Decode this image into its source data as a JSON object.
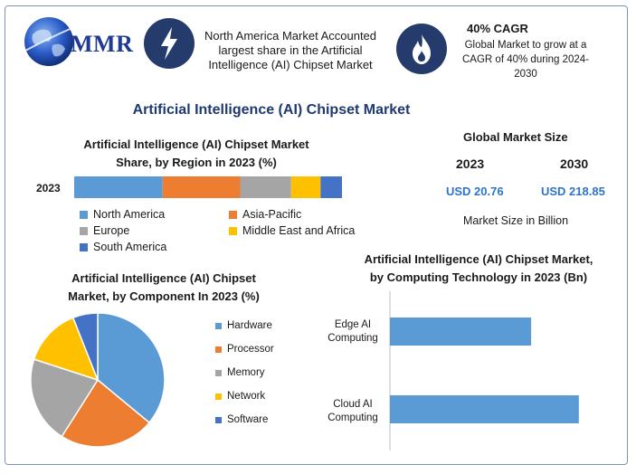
{
  "header": {
    "logo_text": "MMR",
    "highlight_1": {
      "icon": "lightning-bolt-icon",
      "text": "North America Market Accounted largest share in the Artificial Intelligence (AI) Chipset Market"
    },
    "highlight_2": {
      "icon": "flame-icon",
      "title": "40% CAGR",
      "text": "Global Market to grow at a CAGR of 40% during 2024-2030"
    }
  },
  "main_title": "Artificial Intelligence (AI) Chipset Market",
  "market_size": {
    "title": "Global Market Size",
    "year_1": "2023",
    "year_2": "2030",
    "value_1": "USD 20.76",
    "value_2": "USD 218.85",
    "note": "Market Size in Billion"
  },
  "colors": {
    "blue": "#5b9bd5",
    "orange": "#ed7d31",
    "gray": "#a5a5a5",
    "yellow": "#ffc000",
    "dark_blue": "#4472c4"
  },
  "chart_data": [
    {
      "type": "bar",
      "orientation": "horizontal-stacked",
      "title": "Artificial Intelligence (AI) Chipset Market Share, by Region in 2023 (%)",
      "categories": [
        "2023"
      ],
      "series": [
        {
          "name": "North America",
          "values": [
            33
          ],
          "color": "#5b9bd5"
        },
        {
          "name": "Asia-Pacific",
          "values": [
            29
          ],
          "color": "#ed7d31"
        },
        {
          "name": "Europe",
          "values": [
            19
          ],
          "color": "#a5a5a5"
        },
        {
          "name": "Middle East and Africa",
          "values": [
            11
          ],
          "color": "#ffc000"
        },
        {
          "name": "South America",
          "values": [
            8
          ],
          "color": "#4472c4"
        }
      ],
      "xlim": [
        0,
        100
      ],
      "legend": "bottom"
    },
    {
      "type": "pie",
      "title": "Artificial Intelligence (AI) Chipset Market, by Component In 2023 (%)",
      "labels": [
        "Hardware",
        "Processor",
        "Memory",
        "Network",
        "Software"
      ],
      "values": [
        36,
        23,
        21,
        14,
        6
      ],
      "colors": [
        "#5b9bd5",
        "#ed7d31",
        "#a5a5a5",
        "#ffc000",
        "#4472c4"
      ],
      "legend": "right"
    },
    {
      "type": "bar",
      "orientation": "horizontal",
      "title": "Artificial Intelligence (AI) Chipset Market, by Computing Technology in 2023 (Bn)",
      "categories": [
        "Edge AI Computing",
        "Cloud AI Computing"
      ],
      "values": [
        7.4,
        9.9
      ],
      "xlim": [
        0,
        11
      ],
      "color": "#5b9bd5"
    }
  ]
}
